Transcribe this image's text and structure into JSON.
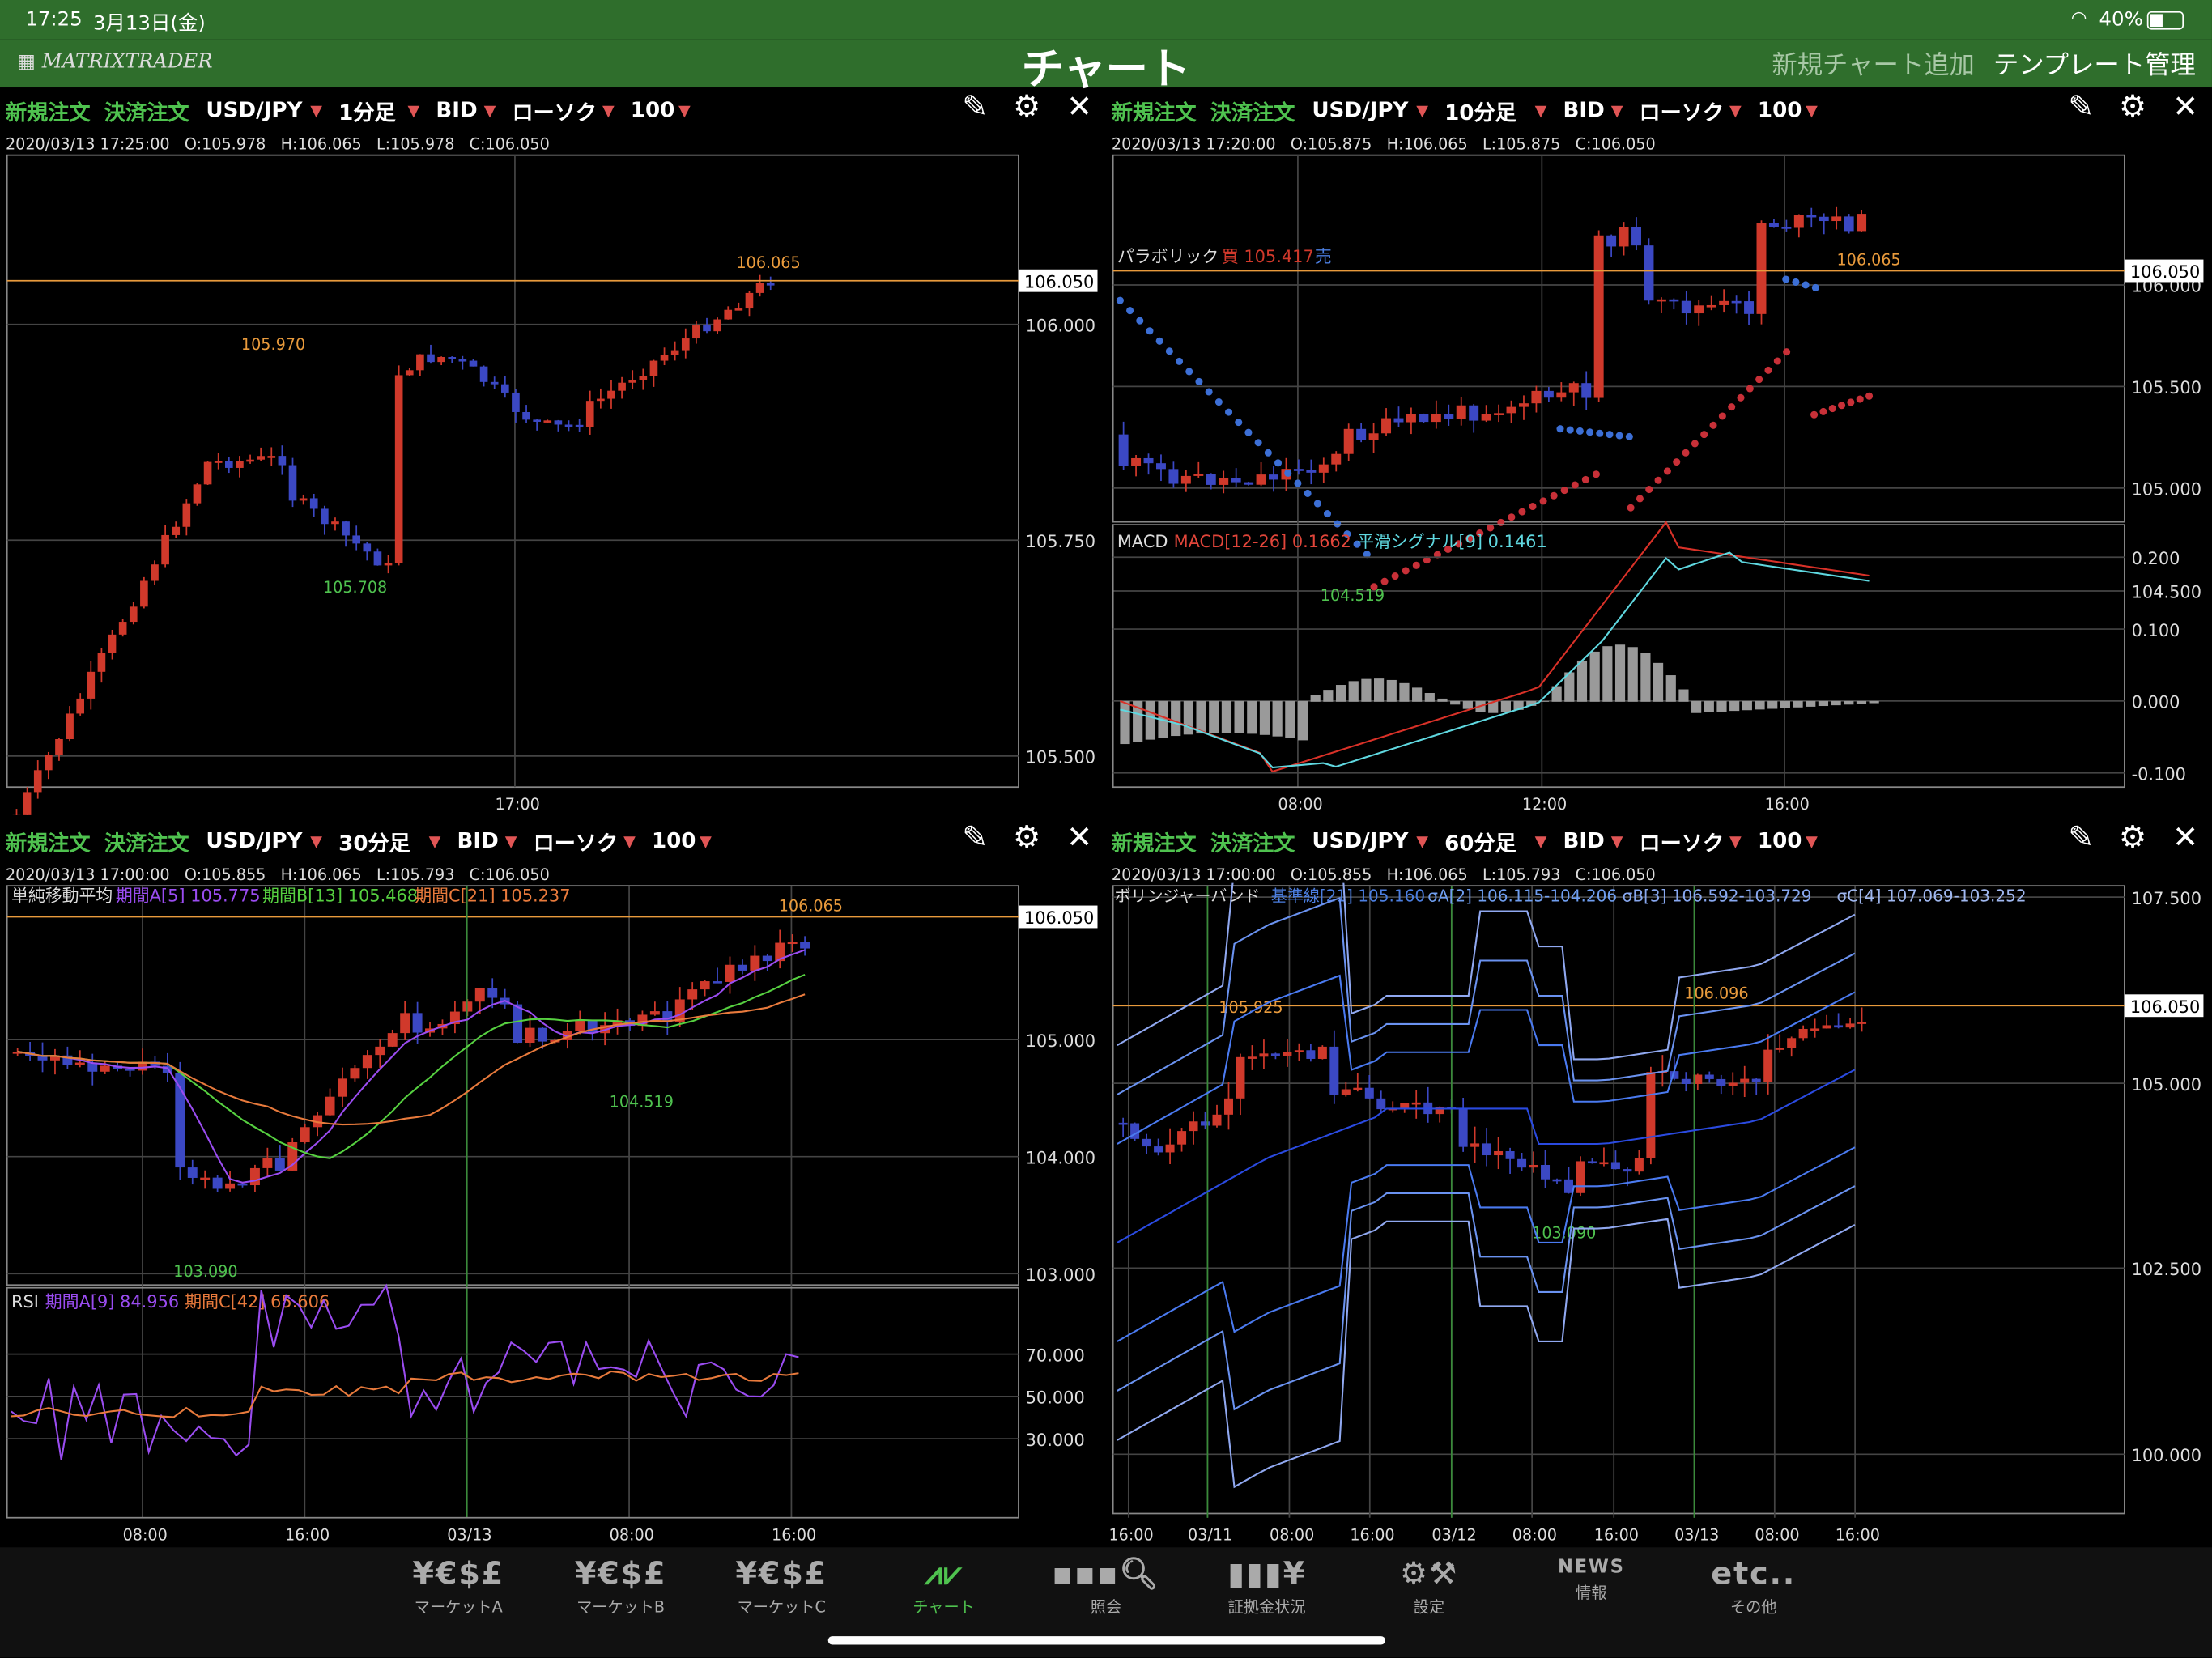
{
  "status": {
    "time": "17:25",
    "date": "3月13日(金)",
    "battery": "40%"
  },
  "header": {
    "title": "チャート",
    "logo": "MATRIXTRADER",
    "add_chart": "新規チャート追加",
    "template": "テンプレート管理"
  },
  "panels": [
    {
      "new_order": "新規注文",
      "settle_order": "決済注文",
      "pair": "USD/JPY",
      "timeframe": "1分足",
      "price_type": "BID",
      "chart_type": "ローソク",
      "count": "100",
      "ohlc": "2020/03/13 17:25:00   O:105.978   H:106.065   L:105.978   C:106.050",
      "current": "106.050",
      "high_label": "106.065",
      "label_a": "105.970",
      "label_b": "105.708",
      "y_ticks": [
        "106.000",
        "105.750",
        "105.500"
      ],
      "x_ticks": [
        "17:00"
      ]
    },
    {
      "new_order": "新規注文",
      "settle_order": "決済注文",
      "pair": "USD/JPY",
      "timeframe": "10分足",
      "price_type": "BID",
      "chart_type": "ローソク",
      "count": "100",
      "ohlc": "2020/03/13 17:20:00   O:105.875   H:106.065   L:105.875   C:106.050",
      "current": "106.050",
      "high_label": "106.065",
      "low_label": "104.519",
      "indicator": "パラボリック",
      "ind_buy": "買 105.417",
      "ind_sell": "売",
      "y_ticks": [
        "106.000",
        "105.500",
        "105.000",
        "104.500"
      ],
      "sub_name": "MACD",
      "sub_a": "MACD[12-26] 0.1662",
      "sub_b": "平滑シグナル[9] 0.1461",
      "sub_ticks": [
        "0.200",
        "0.100",
        "0.000",
        "-0.100"
      ],
      "x_ticks": [
        "08:00",
        "12:00",
        "16:00"
      ]
    },
    {
      "new_order": "新規注文",
      "settle_order": "決済注文",
      "pair": "USD/JPY",
      "timeframe": "30分足",
      "price_type": "BID",
      "chart_type": "ローソク",
      "count": "100",
      "ohlc": "2020/03/13 17:00:00   O:105.855   H:106.065   L:105.793   C:106.050",
      "current": "106.050",
      "high_label": "106.065",
      "low_label": "103.090",
      "label_b": "104.519",
      "indicator": "単純移動平均",
      "ma_a": "期間A[5] 105.775",
      "ma_b": "期間B[13] 105.468",
      "ma_c": "期間C[21] 105.237",
      "y_ticks": [
        "105.000",
        "104.000",
        "103.000"
      ],
      "sub_name": "RSI",
      "sub_a": "期間A[9] 84.956",
      "sub_b": "期間C[42] 65.606",
      "sub_ticks": [
        "70.000",
        "50.000",
        "30.000"
      ],
      "x_ticks": [
        "08:00",
        "16:00",
        "03/13",
        "08:00",
        "16:00"
      ]
    },
    {
      "new_order": "新規注文",
      "settle_order": "決済注文",
      "pair": "USD/JPY",
      "timeframe": "60分足",
      "price_type": "BID",
      "chart_type": "ローソク",
      "count": "100",
      "ohlc": "2020/03/13 17:00:00   O:105.855   H:106.065   L:105.793   C:106.050",
      "current": "106.050",
      "label_a": "105.925",
      "label_b": "106.096",
      "low_label": "103.090",
      "indicator": "ボリンジャーバンド",
      "bb_base": "基準線[21] 105.160",
      "bb_a": "σA[2] 106.115-104.206",
      "bb_b": "σB[3] 106.592-103.729",
      "bb_c": "σC[4] 107.069-103.252",
      "y_ticks": [
        "107.500",
        "105.000",
        "102.500",
        "100.000"
      ],
      "x_ticks": [
        "16:00",
        "03/11",
        "08:00",
        "16:00",
        "03/12",
        "08:00",
        "16:00",
        "03/13",
        "08:00",
        "16:00"
      ]
    }
  ],
  "tabs": [
    {
      "icon": "¥€$£",
      "label": "マーケットA"
    },
    {
      "icon": "¥€$£",
      "label": "マーケットB"
    },
    {
      "icon": "¥€$£",
      "label": "マーケットC"
    },
    {
      "icon": "chart",
      "label": "チャート"
    },
    {
      "icon": "search",
      "label": "照会"
    },
    {
      "icon": "margin",
      "label": "証拠金状況"
    },
    {
      "icon": "gear",
      "label": "設定"
    },
    {
      "icon": "NEWS",
      "label": "情報"
    },
    {
      "icon": "etc..",
      "label": "その他"
    }
  ],
  "colors": {
    "header": "#2f6e2c",
    "up": "#d0392b",
    "down": "#3b48c4",
    "current_line": "#e89a3c",
    "active_tab": "#4fc24f"
  }
}
